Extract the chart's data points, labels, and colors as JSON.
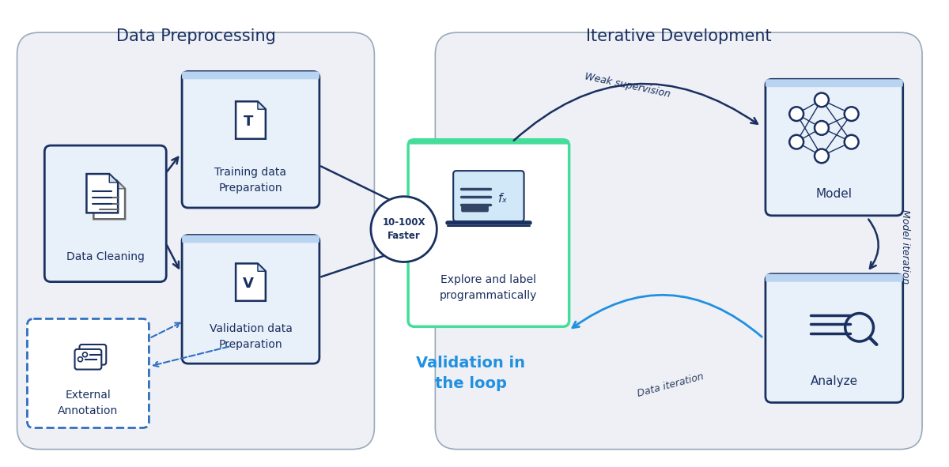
{
  "bg_color": "#ffffff",
  "panel_bg": "#eef0f5",
  "dark_blue": "#1a3060",
  "border_blue": "#1a5080",
  "light_blue_fill": "#e8f0fa",
  "light_blue_top": "#b8d4f0",
  "dashed_blue": "#3070c0",
  "cyan_arrow": "#2090e0",
  "green_line": "#44dd99",
  "left_panel_title": "Data Preprocessing",
  "right_panel_title": "Iterative Development",
  "faster_badge_label": "10-100X\nFaster",
  "validation_in_loop_label": "Validation in\nthe loop",
  "weak_supervision_label": "Weak supervision",
  "model_iteration_label": "Model iteration",
  "data_iteration_label": "Data iteration"
}
